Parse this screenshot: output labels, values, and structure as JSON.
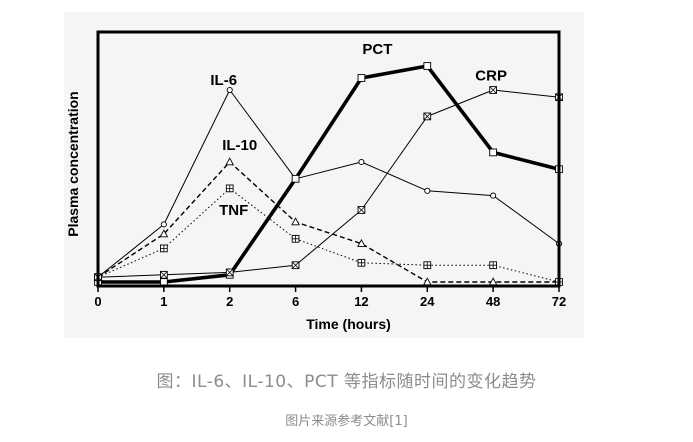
{
  "chart_data": {
    "type": "line",
    "title": "",
    "xlabel": "Time (hours)",
    "ylabel": "Plasma concentration",
    "categories": [
      "0",
      "1",
      "2",
      "6",
      "12",
      "24",
      "48",
      "72"
    ],
    "ylim": [
      0,
      100
    ],
    "grid": false,
    "legend": "inline labels",
    "series": [
      {
        "name": "IL-6",
        "values": [
          2,
          24,
          80,
          43,
          50,
          38,
          36,
          16
        ],
        "marker": "circle",
        "style": "thin-solid",
        "color": "#000000",
        "label_value": 82,
        "label_category_index": 2
      },
      {
        "name": "IL-10",
        "values": [
          2,
          20,
          50,
          25,
          16,
          0,
          0,
          0
        ],
        "marker": "triangle",
        "style": "dashed",
        "color": "#000000",
        "label_value": 55,
        "label_category_index": 2
      },
      {
        "name": "TNF",
        "values": [
          2,
          14,
          39,
          18,
          8,
          7,
          7,
          0
        ],
        "marker": "square-plus",
        "style": "dotted",
        "color": "#000000",
        "label_value": 28,
        "label_category_index": 2
      },
      {
        "name": "PCT",
        "values": [
          0,
          0,
          3,
          43,
          85,
          90,
          54,
          47
        ],
        "marker": "square",
        "style": "thick-solid",
        "color": "#000000",
        "label_value": 95,
        "label_category_index": 4
      },
      {
        "name": "CRP",
        "values": [
          2,
          3,
          4,
          7,
          30,
          69,
          80,
          77
        ],
        "marker": "square-x",
        "style": "thin-solid",
        "color": "#000000",
        "label_value": 84,
        "label_category_index": 6
      }
    ]
  },
  "captions": {
    "main": "图：IL-6、IL-10、PCT 等指标随时间的变化趋势",
    "source": "图片来源参考文献[1]"
  }
}
